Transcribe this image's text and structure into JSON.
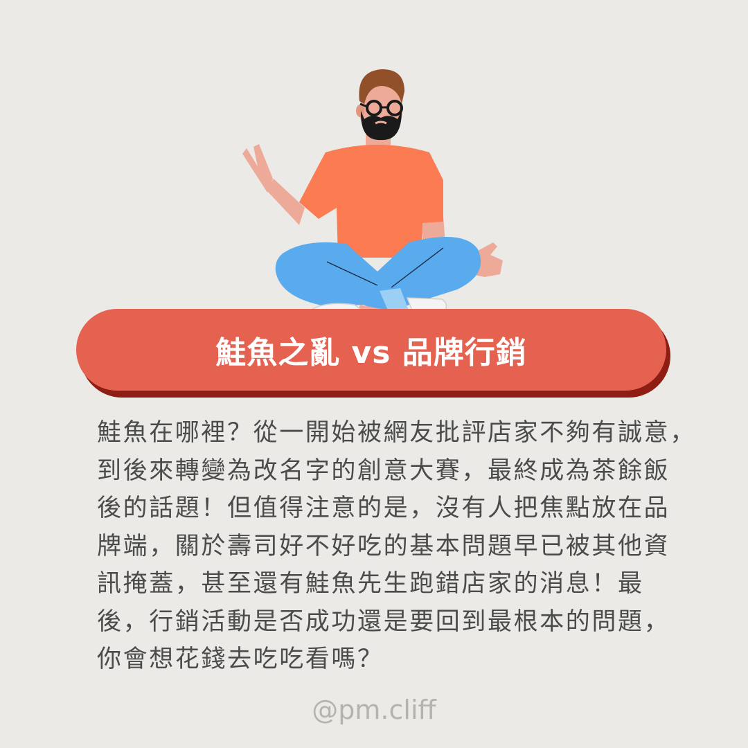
{
  "title": "鮭魚之亂 vs 品牌行銷",
  "body_lines": [
    "鮭魚在哪裡？從一開始被網友批評店家不夠有誠意，",
    "到後來轉變為改名字的創意大賽，最終成為茶餘飯",
    "後的話題！但值得注意的是，沒有人把焦點放在品",
    "牌端，關於壽司好不好吃的基本問題早已被其他資",
    "訊掩蓋，甚至還有鮭魚先生跑錯店家的消息！最",
    "後，行銷活動是否成功還是要回到最根本的問題，",
    "你會想花錢去吃吃看嗎？"
  ],
  "handle": "@pm.cliff",
  "colors": {
    "background": "#ebeae6",
    "banner": "#e56150",
    "banner_shadow": "#8e1d14",
    "shirt": "#fb7b52",
    "jeans": "#5aabee",
    "skin": "#eeaa98",
    "body_text": "#4b4b4b",
    "handle_text": "#b4b3ae"
  }
}
